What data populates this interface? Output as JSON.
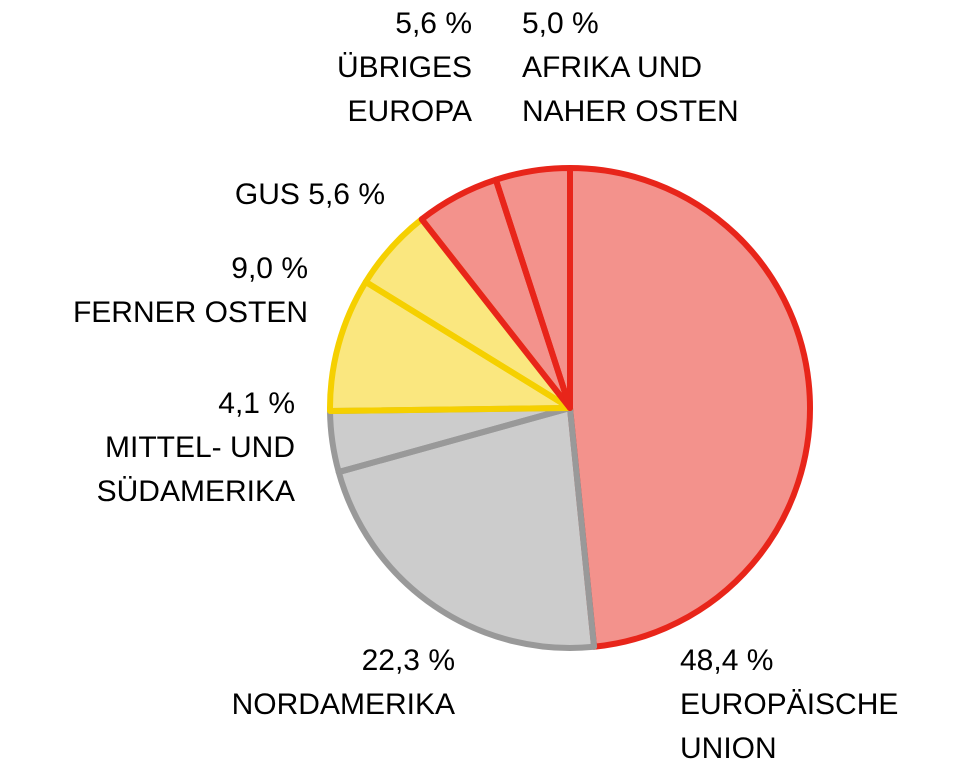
{
  "chart_data": {
    "type": "pie",
    "categories": [
      [
        "EUROPÄISCHE",
        "UNION"
      ],
      [
        "NORDAMERIKA"
      ],
      [
        "MITTEL- UND",
        "SÜDAMERIKA"
      ],
      [
        "FERNER OSTEN"
      ],
      [
        "GUS"
      ],
      [
        "ÜBRIGES",
        "EUROPA"
      ],
      [
        "AFRIKA UND",
        "NAHER OSTEN"
      ]
    ],
    "values": [
      48.4,
      22.3,
      4.1,
      9.0,
      5.6,
      5.6,
      5.0
    ],
    "value_labels": [
      "48,4 %",
      "22,3 %",
      "4,1 %",
      "9,0 %",
      "5,6 %",
      "5,6 %",
      "5,0 %"
    ],
    "colors": [
      "#e8251a",
      "#999999",
      "#999999",
      "#f5d000",
      "#f5d000",
      "#e8251a",
      "#e8251a"
    ]
  }
}
